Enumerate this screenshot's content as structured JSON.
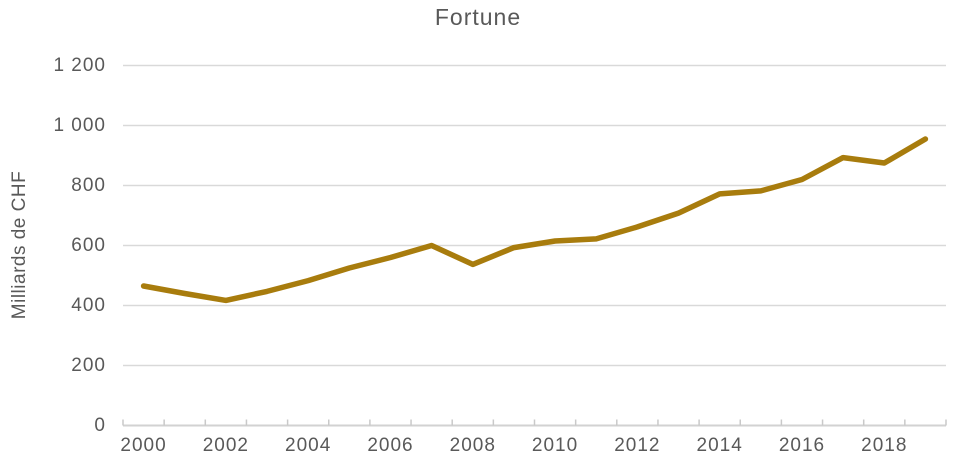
{
  "chart_data": {
    "type": "line",
    "title": "Fortune",
    "ylabel": "Milliards de CHF",
    "xlabel": "",
    "x": [
      2000,
      2001,
      2002,
      2003,
      2004,
      2005,
      2006,
      2007,
      2008,
      2009,
      2010,
      2011,
      2012,
      2013,
      2014,
      2015,
      2016,
      2017,
      2018,
      2019
    ],
    "series": [
      {
        "name": "Fortune",
        "color": "#A87C0D",
        "values": [
          465,
          440,
          417,
          447,
          483,
          525,
          560,
          600,
          537,
          593,
          615,
          622,
          662,
          708,
          772,
          782,
          820,
          893,
          875,
          955
        ]
      }
    ],
    "ylim": [
      0,
      1200
    ],
    "yticks": {
      "values": [
        0,
        200,
        400,
        600,
        800,
        1000,
        1200
      ],
      "labels": [
        "0",
        "200",
        "400",
        "600",
        "800",
        "1 000",
        "1 200"
      ]
    },
    "xticks": {
      "year_indices": [
        0,
        2,
        4,
        6,
        8,
        10,
        12,
        14,
        16,
        18
      ],
      "labels": [
        "2000",
        "2002",
        "2004",
        "2006",
        "2008",
        "2010",
        "2012",
        "2014",
        "2016",
        "2018"
      ]
    },
    "grid": "horizontal",
    "legend_position": "none"
  },
  "colors": {
    "line": "#A87C0D",
    "gridline": "#D9D9D9",
    "axis_line": "#D2D2D2",
    "tick_mark": "#C9C9C9",
    "text": "#595959",
    "background": "#FFFFFF"
  }
}
